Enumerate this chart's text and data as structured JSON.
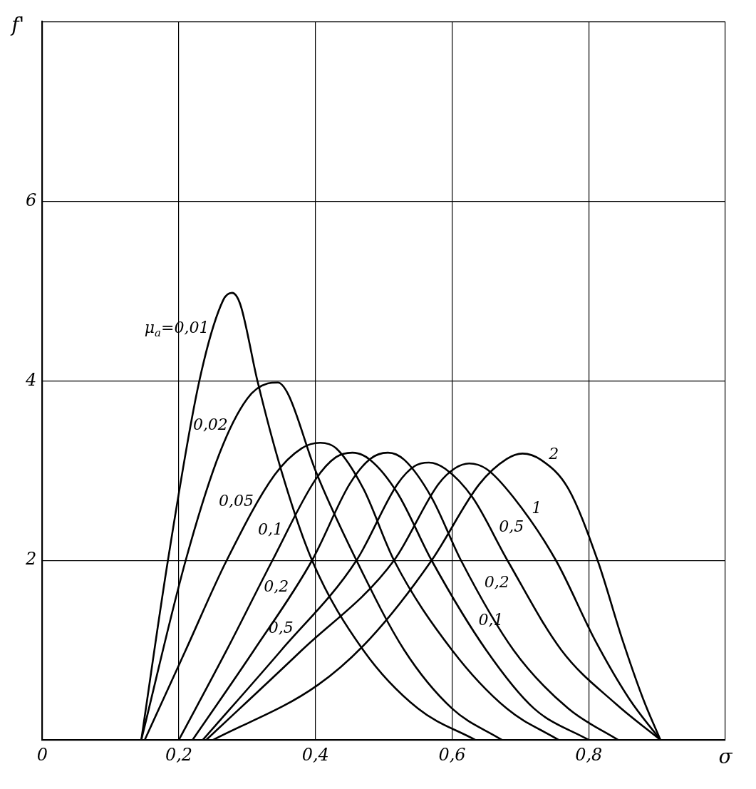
{
  "chart_data": {
    "type": "line",
    "xlabel": "σ",
    "ylabel": "f'",
    "xlim": [
      0,
      1
    ],
    "ylim": [
      0,
      8
    ],
    "xticks": [
      {
        "value": 0,
        "label": "0"
      },
      {
        "value": 0.2,
        "label": "0,2"
      },
      {
        "value": 0.4,
        "label": "0,4"
      },
      {
        "value": 0.6,
        "label": "0,6"
      },
      {
        "value": 0.8,
        "label": "0,8"
      },
      {
        "value": 1,
        "label": null
      }
    ],
    "yticks": [
      {
        "value": 0,
        "label": null
      },
      2,
      4,
      6,
      {
        "value": 8,
        "label": null
      }
    ],
    "grid": true,
    "legend": false,
    "marker": "none",
    "line_style": "solid",
    "series": [
      {
        "name": "μ$_{a}$=0,01",
        "color": "#000000",
        "x": [
          0.145,
          0.184,
          0.23,
          0.265,
          0.278,
          0.29,
          0.315,
          0.35,
          0.395,
          0.47,
          0.55,
          0.634
        ],
        "values": [
          0,
          2,
          4,
          4.9,
          4.98,
          4.85,
          4,
          3,
          2,
          1,
          0.35,
          0
        ]
      },
      {
        "name": "0,02",
        "color": "#000000",
        "x": [
          0.145,
          0.21,
          0.26,
          0.3,
          0.33,
          0.345,
          0.36,
          0.4,
          0.46,
          0.53,
          0.6,
          0.673
        ],
        "values": [
          0,
          2,
          3.2,
          3.8,
          3.97,
          3.98,
          3.85,
          3,
          2,
          1,
          0.35,
          0
        ]
      },
      {
        "name": "0,05",
        "color": "#000000",
        "x": [
          0.15,
          0.21,
          0.27,
          0.34,
          0.38,
          0.407,
          0.43,
          0.47,
          0.515,
          0.6,
          0.68,
          0.756
        ],
        "values": [
          0,
          1,
          2,
          2.95,
          3.25,
          3.31,
          3.25,
          2.8,
          2,
          1,
          0.35,
          0
        ]
      },
      {
        "name": "0,1",
        "color": "#000000",
        "x": [
          0.2,
          0.27,
          0.337,
          0.4,
          0.43,
          0.454,
          0.48,
          0.52,
          0.57,
          0.65,
          0.72,
          0.8
        ],
        "values": [
          0,
          1,
          2,
          2.9,
          3.15,
          3.2,
          3.12,
          2.75,
          2,
          1,
          0.35,
          0
        ]
      },
      {
        "name": "0,2",
        "color": "#000000",
        "x": [
          0.22,
          0.31,
          0.395,
          0.45,
          0.48,
          0.506,
          0.53,
          0.57,
          0.613,
          0.69,
          0.77,
          0.843
        ],
        "values": [
          0,
          1,
          2,
          2.85,
          3.13,
          3.2,
          3.12,
          2.7,
          2,
          1,
          0.35,
          0
        ]
      },
      {
        "name": "0,5",
        "color": "#000000",
        "x": [
          0.235,
          0.35,
          0.46,
          0.52,
          0.545,
          0.566,
          0.59,
          0.63,
          0.681,
          0.76,
          0.84,
          0.905
        ],
        "values": [
          0,
          1,
          2,
          2.85,
          3.05,
          3.09,
          3.02,
          2.7,
          2,
          1,
          0.4,
          0
        ]
      },
      {
        "name": "1",
        "color": "#000000",
        "x": [
          0.24,
          0.38,
          0.515,
          0.58,
          0.605,
          0.625,
          0.65,
          0.69,
          0.752,
          0.81,
          0.86,
          0.905
        ],
        "values": [
          0,
          1,
          2,
          2.85,
          3.03,
          3.08,
          3.02,
          2.7,
          2,
          1.1,
          0.45,
          0
        ]
      },
      {
        "name": "2",
        "color": "#000000",
        "x": [
          0.25,
          0.403,
          0.48,
          0.57,
          0.64,
          0.68,
          0.703,
          0.73,
          0.77,
          0.813,
          0.85,
          0.88,
          0.905
        ],
        "values": [
          0,
          0.61,
          1.13,
          2,
          2.85,
          3.13,
          3.19,
          3.12,
          2.8,
          2,
          1.1,
          0.45,
          0
        ]
      }
    ]
  }
}
